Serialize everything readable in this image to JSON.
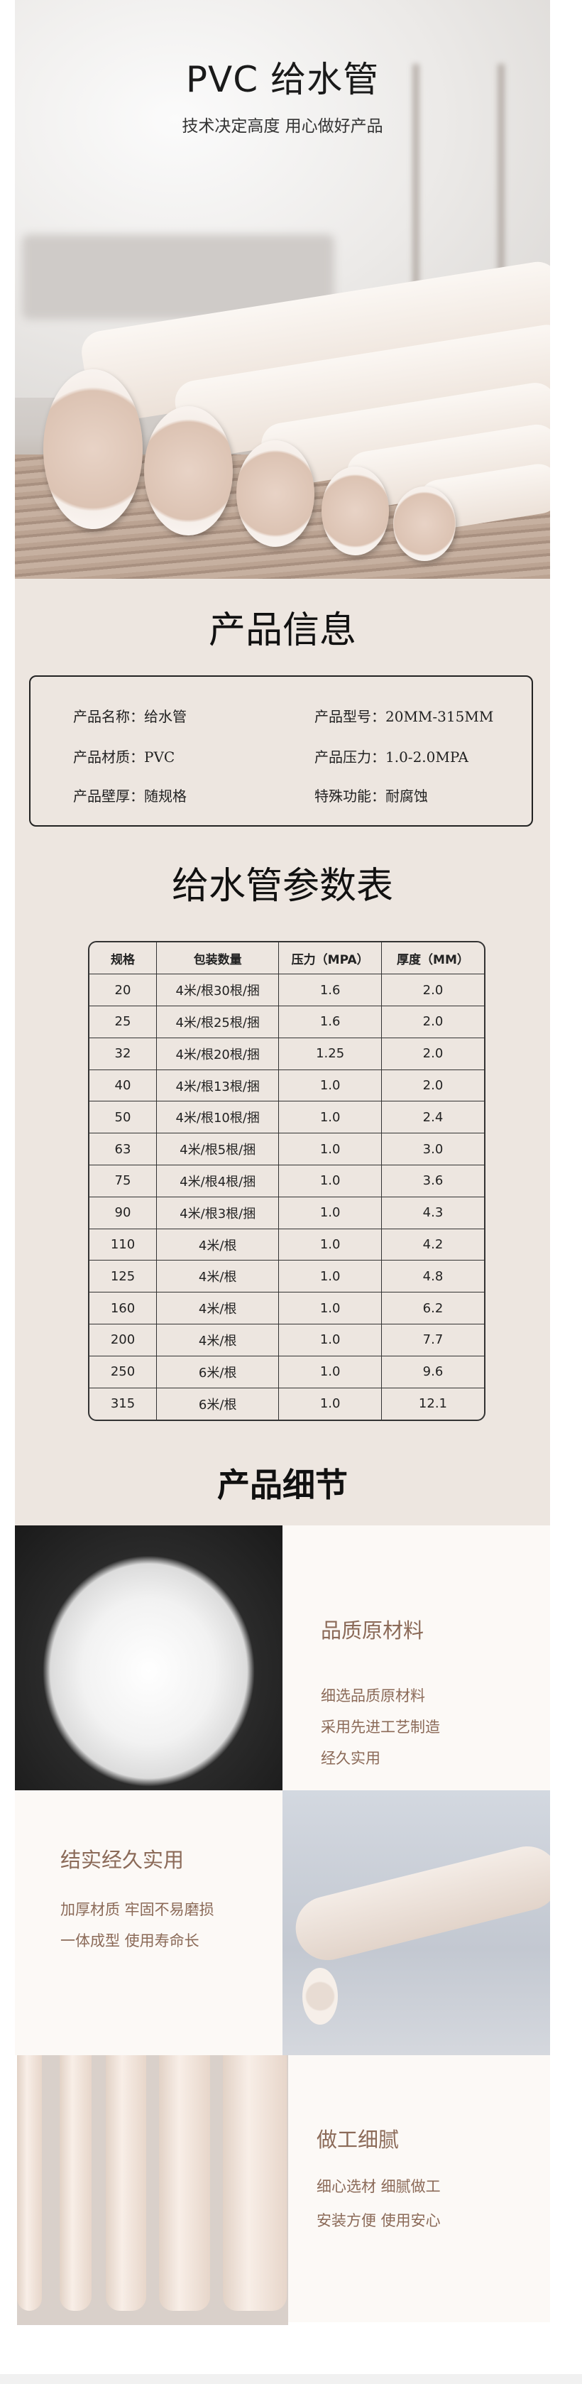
{
  "hero": {
    "title": "PVC 给水管",
    "subtitle": "技术决定高度 用心做好产品"
  },
  "info": {
    "heading": "产品信息",
    "items": [
      {
        "label": "产品名称：",
        "value": "给水管"
      },
      {
        "label": "产品型号：",
        "value": "20MM-315MM"
      },
      {
        "label": "产品材质：",
        "value": "PVC"
      },
      {
        "label": "产品压力：",
        "value": "1.0-2.0MPA"
      },
      {
        "label": "产品壁厚：",
        "value": "随规格"
      },
      {
        "label": "特殊功能：",
        "value": "耐腐蚀"
      }
    ]
  },
  "params": {
    "heading": "给水管参数表",
    "headers": [
      "规格",
      "包装数量",
      "压力（MPA）",
      "厚度（MM）"
    ],
    "rows": [
      [
        "20",
        "4米/根30根/捆",
        "1.6",
        "2.0"
      ],
      [
        "25",
        "4米/根25根/捆",
        "1.6",
        "2.0"
      ],
      [
        "32",
        "4米/根20根/捆",
        "1.25",
        "2.0"
      ],
      [
        "40",
        "4米/根13根/捆",
        "1.0",
        "2.0"
      ],
      [
        "50",
        "4米/根10根/捆",
        "1.0",
        "2.4"
      ],
      [
        "63",
        "4米/根5根/捆",
        "1.0",
        "3.0"
      ],
      [
        "75",
        "4米/根4根/捆",
        "1.0",
        "3.6"
      ],
      [
        "90",
        "4米/根3根/捆",
        "1.0",
        "4.3"
      ],
      [
        "110",
        "4米/根",
        "1.0",
        "4.2"
      ],
      [
        "125",
        "4米/根",
        "1.0",
        "4.8"
      ],
      [
        "160",
        "4米/根",
        "1.0",
        "6.2"
      ],
      [
        "200",
        "4米/根",
        "1.0",
        "7.7"
      ],
      [
        "250",
        "6米/根",
        "1.0",
        "9.6"
      ],
      [
        "315",
        "6米/根",
        "1.0",
        "12.1"
      ]
    ]
  },
  "details": {
    "heading": "产品细节",
    "blocks": [
      {
        "title": "品质原材料",
        "lines": [
          "细选品质原材料",
          "采用先进工艺制造",
          "经久实用"
        ]
      },
      {
        "title": "结实经久实用",
        "lines": [
          "加厚材质 牢固不易磨损",
          "一体成型 使用寿命长"
        ]
      },
      {
        "title": "做工细腻",
        "lines": [
          "细心选材  细腻做工",
          "安装方便  使用安心"
        ]
      }
    ]
  },
  "colors": {
    "section_bg": "#ede6e0",
    "accent_text": "#8b6a58",
    "panel_bg": "#fcf9f6"
  }
}
